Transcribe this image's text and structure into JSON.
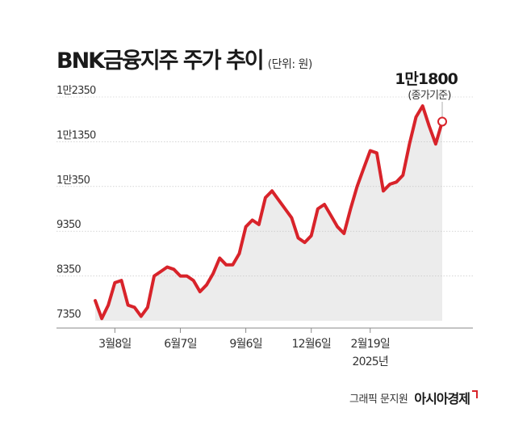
{
  "header": {
    "title": "BNK금융지주 주가 추이",
    "unit": "(단위: 원)"
  },
  "footer": {
    "credit": "그래픽 문지원",
    "brand": "아시아경제"
  },
  "chart_data": {
    "type": "area",
    "title": "BNK금융지주 주가 추이",
    "unit": "(단위: 원)",
    "ylim": [
      7350,
      12350
    ],
    "yticks": [
      7350,
      8350,
      9350,
      10350,
      11350,
      12350
    ],
    "ytick_labels": [
      "7350",
      "8350",
      "9350",
      "1만350",
      "1만1350",
      "1만2350"
    ],
    "xtick_labels": [
      "3월8일",
      "6월7일",
      "9월6일",
      "12월6일",
      "2월19일"
    ],
    "xtick_sublabel": "2025년",
    "xtick_positions": [
      3,
      13,
      23,
      33,
      42
    ],
    "values": [
      7800,
      7400,
      7700,
      8200,
      8250,
      7700,
      7650,
      7450,
      7650,
      8350,
      8450,
      8550,
      8500,
      8350,
      8350,
      8250,
      8000,
      8150,
      8400,
      8750,
      8600,
      8600,
      8850,
      9450,
      9600,
      9500,
      10100,
      10250,
      10050,
      9850,
      9650,
      9200,
      9100,
      9250,
      9850,
      9950,
      9700,
      9450,
      9300,
      9850,
      10350,
      10750,
      11150,
      11100,
      10250,
      10400,
      10450,
      10600,
      11300,
      11900,
      12150,
      11700,
      11300,
      11800
    ],
    "last_value_label": "1만1800",
    "last_value_note": "(종가기준)",
    "grid": true,
    "colors": {
      "line": "#d8232a",
      "area": "#ececec",
      "grid": "#bdbdbd",
      "axis": "#8a8a8a"
    }
  }
}
